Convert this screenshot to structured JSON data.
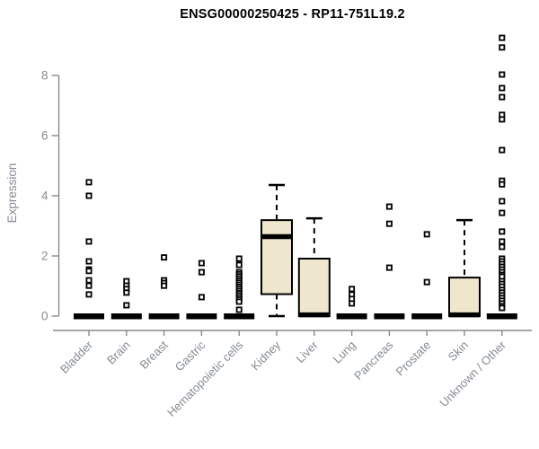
{
  "chart_data": {
    "type": "boxplot",
    "title": "ENSG00000250425 - RP11-751L19.2",
    "ylabel": "Expression",
    "xlabel": "",
    "ylim": [
      0,
      9.3
    ],
    "yticks": [
      0,
      2,
      4,
      6,
      8
    ],
    "grid": false,
    "legend": "none",
    "colors": {
      "box_fill": "#EEE7CD",
      "box_stroke": "#000000",
      "median": "#000000",
      "outlier": "#000000",
      "axis_line": "#8a8a8a",
      "axis_text": "#858b92",
      "title_text": "#000000"
    },
    "categories": [
      "Bladder",
      "Brain",
      "Breast",
      "Gastric",
      "Hematopoietic cells",
      "Kidney",
      "Liver",
      "Lung",
      "Pancreas",
      "Prostate",
      "Skin",
      "Unknown / Other"
    ],
    "series": [
      {
        "name": "Bladder",
        "q1": 0,
        "median": 0,
        "q3": 0,
        "whisker_low": 0,
        "whisker_high": 0,
        "outliers": [
          4.45,
          4.0,
          2.48,
          1.82,
          1.55,
          1.5,
          1.19,
          1.01,
          0.72
        ]
      },
      {
        "name": "Brain",
        "q1": 0,
        "median": 0,
        "q3": 0,
        "whisker_low": 0,
        "whisker_high": 0,
        "outliers": [
          1.16,
          1.01,
          0.9,
          0.78,
          0.36
        ]
      },
      {
        "name": "Breast",
        "q1": 0,
        "median": 0,
        "q3": 0,
        "whisker_low": 0,
        "whisker_high": 0,
        "outliers": [
          1.95,
          1.19,
          1.1,
          1.01
        ]
      },
      {
        "name": "Gastric",
        "q1": 0,
        "median": 0,
        "q3": 0,
        "whisker_low": 0,
        "whisker_high": 0,
        "outliers": [
          1.76,
          1.46,
          0.63
        ]
      },
      {
        "name": "Hematopoietic cells",
        "q1": 0,
        "median": 0,
        "q3": 0,
        "whisker_low": 0,
        "whisker_high": 0,
        "outliers": [
          1.91,
          1.7,
          1.46,
          1.39,
          1.32,
          1.25,
          1.18,
          1.11,
          1.04,
          0.97,
          0.9,
          0.83,
          0.76,
          0.69,
          0.62,
          0.55,
          0.48,
          0.21
        ]
      },
      {
        "name": "Kidney",
        "q1": 0.73,
        "median": 2.64,
        "q3": 3.19,
        "whisker_low": 0.0,
        "whisker_high": 4.36,
        "outliers": []
      },
      {
        "name": "Liver",
        "q1": 0.0,
        "median": 0.04,
        "q3": 1.91,
        "whisker_low": 0.0,
        "whisker_high": 3.25,
        "outliers": []
      },
      {
        "name": "Lung",
        "q1": 0,
        "median": 0,
        "q3": 0,
        "whisker_low": 0,
        "whisker_high": 0,
        "outliers": [
          0.9,
          0.72,
          0.57,
          0.42
        ]
      },
      {
        "name": "Pancreas",
        "q1": 0,
        "median": 0,
        "q3": 0,
        "whisker_low": 0,
        "whisker_high": 0,
        "outliers": [
          3.64,
          3.07,
          1.61
        ]
      },
      {
        "name": "Prostate",
        "q1": 0,
        "median": 0,
        "q3": 0,
        "whisker_low": 0,
        "whisker_high": 0,
        "outliers": [
          2.72,
          1.13
        ]
      },
      {
        "name": "Skin",
        "q1": 0.0,
        "median": 0.04,
        "q3": 1.28,
        "whisker_low": 0.0,
        "whisker_high": 3.19,
        "outliers": []
      },
      {
        "name": "Unknown / Other",
        "q1": 0,
        "median": 0,
        "q3": 0,
        "whisker_low": 0,
        "whisker_high": 0,
        "outliers": [
          9.25,
          8.93,
          8.03,
          7.58,
          7.28,
          6.69,
          6.54,
          5.52,
          4.5,
          4.38,
          3.82,
          3.43,
          2.81,
          2.48,
          2.3,
          1.91,
          1.82,
          1.73,
          1.64,
          1.55,
          1.46,
          1.37,
          1.31,
          1.16,
          1.07,
          0.98,
          0.87,
          0.78,
          0.69,
          0.6,
          0.51,
          0.42,
          0.33,
          0.27
        ]
      }
    ]
  }
}
